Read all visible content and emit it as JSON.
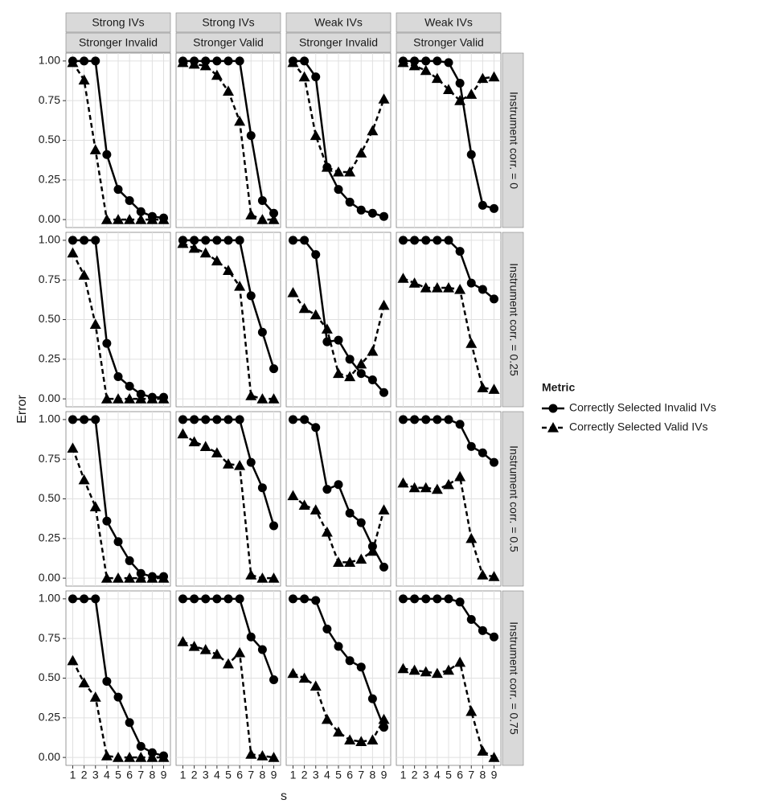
{
  "chart_data": {
    "type": "line",
    "xlabel": "s",
    "ylabel": "Error",
    "legend_title": "Metric",
    "legend_position": "right",
    "grid": true,
    "x": [
      1,
      2,
      3,
      4,
      5,
      6,
      7,
      8,
      9
    ],
    "xlim": [
      0.4,
      9.6
    ],
    "xticks": [
      1,
      2,
      3,
      4,
      5,
      6,
      7,
      8,
      9
    ],
    "ylim": [
      -0.05,
      1.05
    ],
    "yticks": [
      {
        "value": 0,
        "label": "0.00"
      },
      {
        "value": 0.25,
        "label": "0.25"
      },
      {
        "value": 0.5,
        "label": "0.50"
      },
      {
        "value": 0.75,
        "label": "0.75"
      },
      {
        "value": 1,
        "label": "1.00"
      }
    ],
    "series": [
      {
        "name": "Correctly Selected Invalid IVs",
        "color": "#000000",
        "marker": "circle",
        "dash": "solid"
      },
      {
        "name": "Correctly Selected Valid IVs",
        "color": "#000000",
        "marker": "triangle",
        "dash": "dashed"
      }
    ],
    "col_strips": [
      [
        "Strong IVs",
        "Stronger Invalid"
      ],
      [
        "Strong IVs",
        "Stronger Valid"
      ],
      [
        "Weak IVs",
        "Stronger Invalid"
      ],
      [
        "Weak IVs",
        "Stronger Valid"
      ]
    ],
    "row_strips": [
      "Instrument corr. = 0",
      "Instrument corr. = 0.25",
      "Instrument corr. = 0.5",
      "Instrument corr. = 0.75"
    ],
    "panels": [
      [
        [
          [
            1,
            1,
            1,
            0.41,
            0.19,
            0.12,
            0.05,
            0.02,
            0.01
          ],
          [
            0.99,
            0.88,
            0.44,
            0,
            0,
            0,
            0,
            0,
            0
          ]
        ],
        [
          [
            1,
            1,
            1,
            1,
            1,
            1,
            0.53,
            0.12,
            0.04
          ],
          [
            0.99,
            0.98,
            0.97,
            0.91,
            0.81,
            0.62,
            0.03,
            0,
            0
          ]
        ],
        [
          [
            1,
            1,
            0.9,
            0.33,
            0.19,
            0.11,
            0.06,
            0.04,
            0.02
          ],
          [
            0.99,
            0.9,
            0.53,
            0.33,
            0.3,
            0.3,
            0.42,
            0.56,
            0.76
          ]
        ],
        [
          [
            1,
            1,
            1,
            1,
            0.99,
            0.86,
            0.41,
            0.09,
            0.07
          ],
          [
            0.99,
            0.97,
            0.94,
            0.89,
            0.82,
            0.75,
            0.79,
            0.89,
            0.9
          ]
        ]
      ],
      [
        [
          [
            1,
            1,
            1,
            0.35,
            0.14,
            0.08,
            0.03,
            0.01,
            0.01
          ],
          [
            0.92,
            0.78,
            0.47,
            0,
            0,
            0,
            0,
            0,
            0
          ]
        ],
        [
          [
            1,
            1,
            1,
            1,
            1,
            1,
            0.65,
            0.42,
            0.19
          ],
          [
            0.98,
            0.95,
            0.92,
            0.87,
            0.81,
            0.71,
            0.02,
            0,
            0
          ]
        ],
        [
          [
            1,
            1,
            0.91,
            0.36,
            0.37,
            0.25,
            0.16,
            0.12,
            0.04
          ],
          [
            0.67,
            0.57,
            0.53,
            0.44,
            0.16,
            0.14,
            0.22,
            0.3,
            0.59
          ]
        ],
        [
          [
            1,
            1,
            1,
            1,
            1,
            0.93,
            0.73,
            0.69,
            0.63
          ],
          [
            0.76,
            0.73,
            0.7,
            0.7,
            0.7,
            0.69,
            0.35,
            0.07,
            0.06
          ]
        ]
      ],
      [
        [
          [
            1,
            1,
            1,
            0.36,
            0.23,
            0.11,
            0.03,
            0.01,
            0.01
          ],
          [
            0.82,
            0.62,
            0.45,
            0,
            0,
            0,
            0,
            0,
            0
          ]
        ],
        [
          [
            1,
            1,
            1,
            1,
            1,
            1,
            0.73,
            0.57,
            0.33
          ],
          [
            0.91,
            0.86,
            0.83,
            0.79,
            0.72,
            0.71,
            0.02,
            0,
            0
          ]
        ],
        [
          [
            1,
            1,
            0.95,
            0.56,
            0.59,
            0.41,
            0.35,
            0.2,
            0.07
          ],
          [
            0.52,
            0.46,
            0.43,
            0.29,
            0.1,
            0.1,
            0.12,
            0.17,
            0.43
          ]
        ],
        [
          [
            1,
            1,
            1,
            1,
            1,
            0.97,
            0.83,
            0.79,
            0.73
          ],
          [
            0.6,
            0.57,
            0.57,
            0.56,
            0.59,
            0.64,
            0.25,
            0.02,
            0.01
          ]
        ]
      ],
      [
        [
          [
            1,
            1,
            1,
            0.48,
            0.38,
            0.22,
            0.07,
            0.03,
            0.01
          ],
          [
            0.61,
            0.47,
            0.38,
            0.01,
            0,
            0,
            0,
            0,
            0
          ]
        ],
        [
          [
            1,
            1,
            1,
            1,
            1,
            1,
            0.76,
            0.68,
            0.49
          ],
          [
            0.73,
            0.7,
            0.68,
            0.65,
            0.59,
            0.66,
            0.02,
            0.01,
            0
          ]
        ],
        [
          [
            1,
            1,
            0.99,
            0.81,
            0.7,
            0.61,
            0.57,
            0.37,
            0.19
          ],
          [
            0.53,
            0.5,
            0.45,
            0.24,
            0.16,
            0.11,
            0.1,
            0.11,
            0.24
          ]
        ],
        [
          [
            1,
            1,
            1,
            1,
            1,
            0.98,
            0.87,
            0.8,
            0.76
          ],
          [
            0.56,
            0.55,
            0.54,
            0.53,
            0.55,
            0.6,
            0.29,
            0.04,
            0
          ]
        ]
      ]
    ]
  }
}
